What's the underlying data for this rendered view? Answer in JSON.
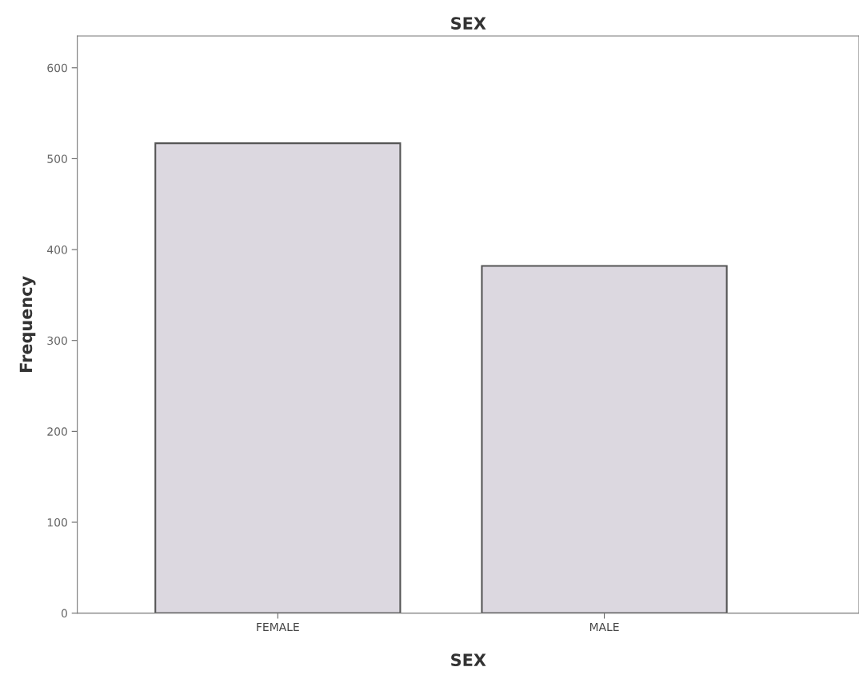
{
  "chart_data": {
    "type": "bar",
    "title": "SEX",
    "xlabel": "SEX",
    "ylabel": "Frequency",
    "categories": [
      "FEMALE",
      "MALE"
    ],
    "values": [
      517,
      382
    ],
    "color": "#dcd8e0",
    "ylim": [
      0,
      635
    ],
    "yticks": [
      0,
      100,
      200,
      300,
      400,
      500,
      600
    ],
    "grid": false,
    "legend": false
  }
}
